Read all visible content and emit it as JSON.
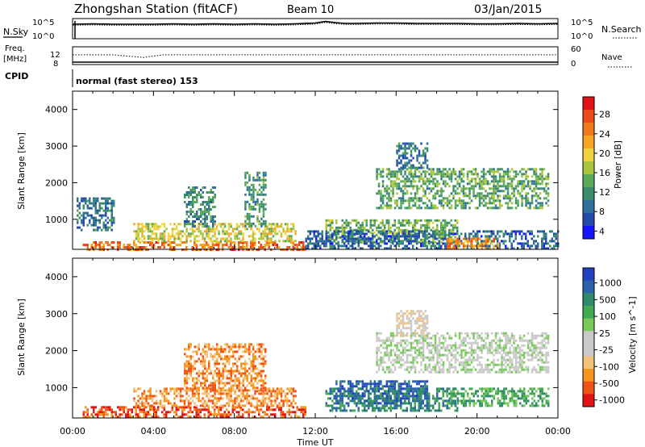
{
  "header": {
    "station": "Zhongshan Station (fitACF)",
    "beam": "Beam 10",
    "date": "03/Jan/2015"
  },
  "time_axis": {
    "label": "Time UT",
    "ticks": [
      "00:00",
      "04:00",
      "08:00",
      "12:00",
      "16:00",
      "20:00",
      "00:00"
    ]
  },
  "chart_data": [
    {
      "type": "line",
      "panel": "noise",
      "left_label": "N.Sky",
      "right_label": "N.Search",
      "left_ticks": [
        "10^5",
        "10^0"
      ],
      "right_ticks": [
        "10^5",
        "10^0"
      ],
      "ylim": [
        0,
        5
      ],
      "ylim_note_exponent": true,
      "xlim": [
        0,
        24
      ],
      "series": [
        {
          "x": [
            0,
            1,
            2,
            3,
            4,
            5,
            6,
            7,
            8,
            9,
            10,
            11,
            12,
            12.5,
            13,
            13.5,
            14,
            15,
            16,
            17,
            18,
            19,
            20,
            21,
            22,
            23,
            24
          ],
          "y": [
            3.6,
            3.7,
            3.6,
            3.6,
            3.6,
            3.7,
            3.6,
            3.7,
            3.6,
            3.7,
            3.6,
            3.7,
            3.9,
            4.3,
            4.0,
            3.8,
            3.8,
            3.9,
            3.9,
            3.8,
            3.8,
            3.8,
            3.7,
            3.7,
            3.8,
            3.7,
            3.8
          ]
        }
      ]
    },
    {
      "type": "line",
      "panel": "frequency",
      "left_label_1": "Freq.",
      "left_label_2": "[MHz]",
      "right_label": "Nave",
      "left_ticks": [
        "12",
        "8"
      ],
      "right_ticks": [
        "60",
        "0"
      ],
      "ylim": [
        8,
        12
      ],
      "xlim": [
        0,
        24
      ],
      "series": [
        {
          "x": [
            0,
            2,
            2.5,
            3,
            3.5,
            4,
            4.5,
            5,
            24
          ],
          "y": [
            10.2,
            10.2,
            10.0,
            9.8,
            9.6,
            9.9,
            10.2,
            10.2,
            10.2
          ]
        }
      ]
    },
    {
      "type": "heatmap",
      "panel": "cpid",
      "label": "CPID",
      "annotation": "normal (fast stereo) 153"
    },
    {
      "type": "heatmap",
      "panel": "power",
      "ylabel": "Slant Range [km]",
      "yticks": [
        "4000",
        "3000",
        "2000",
        "1000"
      ],
      "ylim": [
        180,
        4500
      ],
      "xlim": [
        0,
        24
      ],
      "colorbar_label": "Power [dB]",
      "colorbar_ticks": [
        "28",
        "24",
        "20",
        "16",
        "12",
        "8",
        "4"
      ],
      "colorbar_range": [
        0,
        32
      ],
      "palette": [
        "#1414ff",
        "#234aa8",
        "#2e6e9a",
        "#3a8f6a",
        "#5aa85a",
        "#a9c63a",
        "#f2d23c",
        "#f5a623",
        "#f0791e",
        "#ea4a18",
        "#e01414"
      ],
      "regions": [
        {
          "t0": 0.5,
          "t1": 11.5,
          "r0": 180,
          "r1": 400,
          "level": 26
        },
        {
          "t0": 3.0,
          "t1": 11.0,
          "r0": 400,
          "r1": 900,
          "level": 18
        },
        {
          "t0": 0.2,
          "t1": 2.0,
          "r0": 700,
          "r1": 1600,
          "level": 7
        },
        {
          "t0": 5.5,
          "t1": 7.0,
          "r0": 800,
          "r1": 1900,
          "level": 9
        },
        {
          "t0": 8.5,
          "t1": 9.5,
          "r0": 800,
          "r1": 2300,
          "level": 10
        },
        {
          "t0": 12.5,
          "t1": 19.0,
          "r0": 400,
          "r1": 1000,
          "level": 13
        },
        {
          "t0": 15.0,
          "t1": 23.5,
          "r0": 1300,
          "r1": 2400,
          "level": 12
        },
        {
          "t0": 16.0,
          "t1": 17.5,
          "r0": 2400,
          "r1": 3100,
          "level": 7
        },
        {
          "t0": 11.5,
          "t1": 24.0,
          "r0": 200,
          "r1": 700,
          "level": 6
        },
        {
          "t0": 18.5,
          "t1": 21.0,
          "r0": 200,
          "r1": 500,
          "level": 24
        }
      ]
    },
    {
      "type": "heatmap",
      "panel": "velocity",
      "ylabel": "Slant Range [km]",
      "yticks": [
        "4000",
        "3000",
        "2000",
        "1000"
      ],
      "ylim": [
        180,
        4500
      ],
      "xlim": [
        0,
        24
      ],
      "colorbar_label": "Velocity [m s^-1]",
      "colorbar_ticks": [
        "1000",
        "500",
        "100",
        "25",
        "-25",
        "-100",
        "-500",
        "-1000"
      ],
      "palette": [
        "#e01414",
        "#ef5416",
        "#f5951e",
        "#f2c27a",
        "#c9c9c9",
        "#c9c9c9",
        "#79c95a",
        "#42a852",
        "#2e8a6a",
        "#2b62a8",
        "#2240c0"
      ],
      "regions": [
        {
          "t0": 0.5,
          "t1": 11.5,
          "r0": 180,
          "r1": 500,
          "level": 1
        },
        {
          "t0": 3.0,
          "t1": 11.0,
          "r0": 500,
          "r1": 1000,
          "level": 2
        },
        {
          "t0": 5.5,
          "t1": 9.5,
          "r0": 900,
          "r1": 2200,
          "level": 2
        },
        {
          "t0": 12.5,
          "t1": 19.0,
          "r0": 400,
          "r1": 1000,
          "level": 8
        },
        {
          "t0": 15.0,
          "t1": 23.5,
          "r0": 1400,
          "r1": 2500,
          "level": 5
        },
        {
          "t0": 13.0,
          "t1": 17.5,
          "r0": 600,
          "r1": 1200,
          "level": 9
        },
        {
          "t0": 18.5,
          "t1": 23.5,
          "r0": 500,
          "r1": 1000,
          "level": 7
        },
        {
          "t0": 16.0,
          "t1": 17.5,
          "r0": 2400,
          "r1": 3100,
          "level": 4
        }
      ]
    }
  ]
}
